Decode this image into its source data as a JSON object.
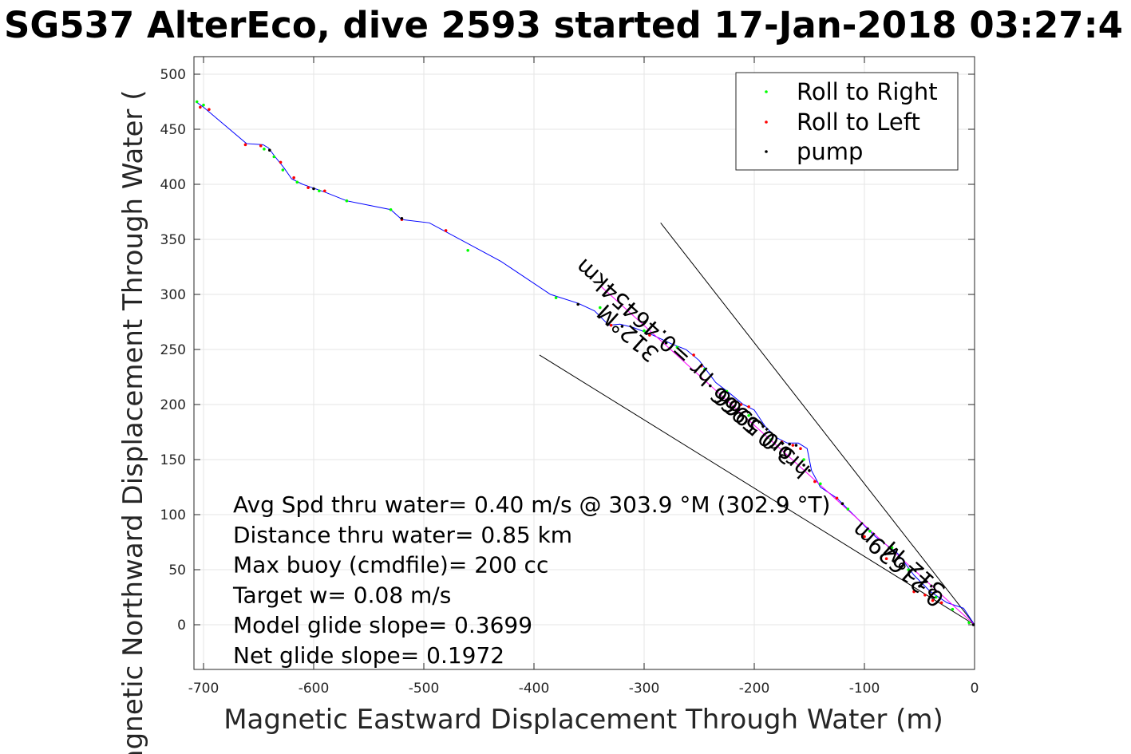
{
  "chart_data": {
    "type": "scatter",
    "title": "SG537 AlterEco, dive 2593 started 17-Jan-2018 03:27:4",
    "xlabel": "Magnetic Eastward Displacement Through Water (m)",
    "ylabel": "Magnetic Northward Displacement Through Water (",
    "xlim": [
      -710,
      0
    ],
    "ylim": [
      -40,
      515
    ],
    "xticks": [
      -700,
      -600,
      -500,
      -400,
      -300,
      -200,
      -100,
      0
    ],
    "yticks": [
      0,
      50,
      100,
      150,
      200,
      250,
      300,
      350,
      400,
      450,
      500
    ],
    "grid": true,
    "legend_position": "top-right",
    "track": {
      "name": "",
      "color": "#0000ff",
      "x": [
        0,
        -10,
        -25,
        -40,
        -55,
        -70,
        -90,
        -110,
        -125,
        -140,
        -148,
        -150,
        -152,
        -160,
        -170,
        -180,
        -190,
        -200,
        -210,
        -222,
        -235,
        -250,
        -262,
        -275,
        -292,
        -310,
        -322,
        -332,
        -345,
        -360,
        -385,
        -430,
        -495,
        -520,
        -530,
        -570,
        -590,
        -610,
        -620,
        -627,
        -635,
        -641,
        -646,
        -661,
        -700,
        -707
      ],
      "y": [
        0,
        15,
        20,
        30,
        45,
        65,
        80,
        100,
        115,
        125,
        140,
        150,
        160,
        165,
        165,
        170,
        180,
        195,
        200,
        210,
        220,
        240,
        250,
        255,
        263,
        270,
        273,
        272,
        285,
        292,
        300,
        330,
        365,
        368,
        377,
        385,
        393,
        400,
        405,
        415,
        425,
        433,
        436,
        437,
        470,
        475
      ]
    },
    "series": [
      {
        "name": "Roll to Right",
        "color": "#00ff00",
        "x": [
          -5,
          -20,
          -35,
          -60,
          -75,
          -95,
          -115,
          -140,
          -155,
          -185,
          -205,
          -225,
          -245,
          -270,
          -300,
          -340,
          -380,
          -460,
          -530,
          -570,
          -595,
          -615,
          -628,
          -636,
          -645,
          -700,
          -706
        ],
        "y": [
          2,
          14,
          25,
          50,
          70,
          85,
          105,
          128,
          150,
          168,
          190,
          212,
          232,
          252,
          267,
          288,
          297,
          340,
          377,
          385,
          394,
          402,
          413,
          425,
          432,
          472,
          475
        ]
      },
      {
        "name": "Roll to Left",
        "color": "#ff0000",
        "x": [
          -30,
          -38,
          -45,
          -55,
          -80,
          -100,
          -125,
          -145,
          -158,
          -165,
          -175,
          -205,
          -212,
          -218,
          -248,
          -255,
          -295,
          -330,
          -480,
          -520,
          -590,
          -605,
          -618,
          -630,
          -648,
          -662,
          -695,
          -703
        ],
        "y": [
          20,
          22,
          27,
          30,
          60,
          80,
          115,
          130,
          160,
          163,
          166,
          198,
          200,
          203,
          235,
          245,
          263,
          272,
          358,
          368,
          394,
          397,
          406,
          420,
          435,
          436,
          468,
          470
        ]
      },
      {
        "name": "pump",
        "color": "#000000",
        "x": [
          -1,
          -50,
          -120,
          -150,
          -155,
          -162,
          -168,
          -200,
          -240,
          -280,
          -320,
          -360,
          -520,
          -600,
          -640
        ],
        "y": [
          0,
          35,
          110,
          140,
          145,
          163,
          164,
          185,
          217,
          256,
          271,
          291,
          369,
          396,
          431
        ]
      }
    ],
    "reference_lines": [
      {
        "x": [
          0,
          -285
        ],
        "y": [
          0,
          365
        ]
      },
      {
        "x": [
          0,
          -395
        ],
        "y": [
          0,
          245
        ]
      }
    ],
    "heading_line": {
      "color": "#ff00ff",
      "x": [
        0,
        -340
      ],
      "y": [
        0,
        308
      ]
    },
    "annotations": [
      {
        "text": "312°M",
        "x": -310,
        "y": 270,
        "rotation_deg": 222
      },
      {
        "text": "hr =0.46454km",
        "x": -295,
        "y": 280,
        "rotation_deg": 222
      },
      {
        "text": "3.0.5966",
        "x": -195,
        "y": 185,
        "rotation_deg": 222
      },
      {
        "text": "hror0.5966",
        "x": -190,
        "y": 180,
        "rotation_deg": 222
      },
      {
        "text": "0.21629m",
        "x": -65,
        "y": 60,
        "rotation_deg": 222
      },
      {
        "text": "312°M",
        "x": -50,
        "y": 55,
        "rotation_deg": 222
      }
    ],
    "stats": [
      "Avg Spd thru water=  0.40 m/s @ 303.9 °M (302.9 °T)",
      "Distance thru water=  0.85 km",
      "Max buoy (cmdfile)= 200 cc",
      "Target w= 0.08 m/s",
      "Model glide slope= 0.3699",
      "Net glide slope= 0.1972"
    ]
  }
}
